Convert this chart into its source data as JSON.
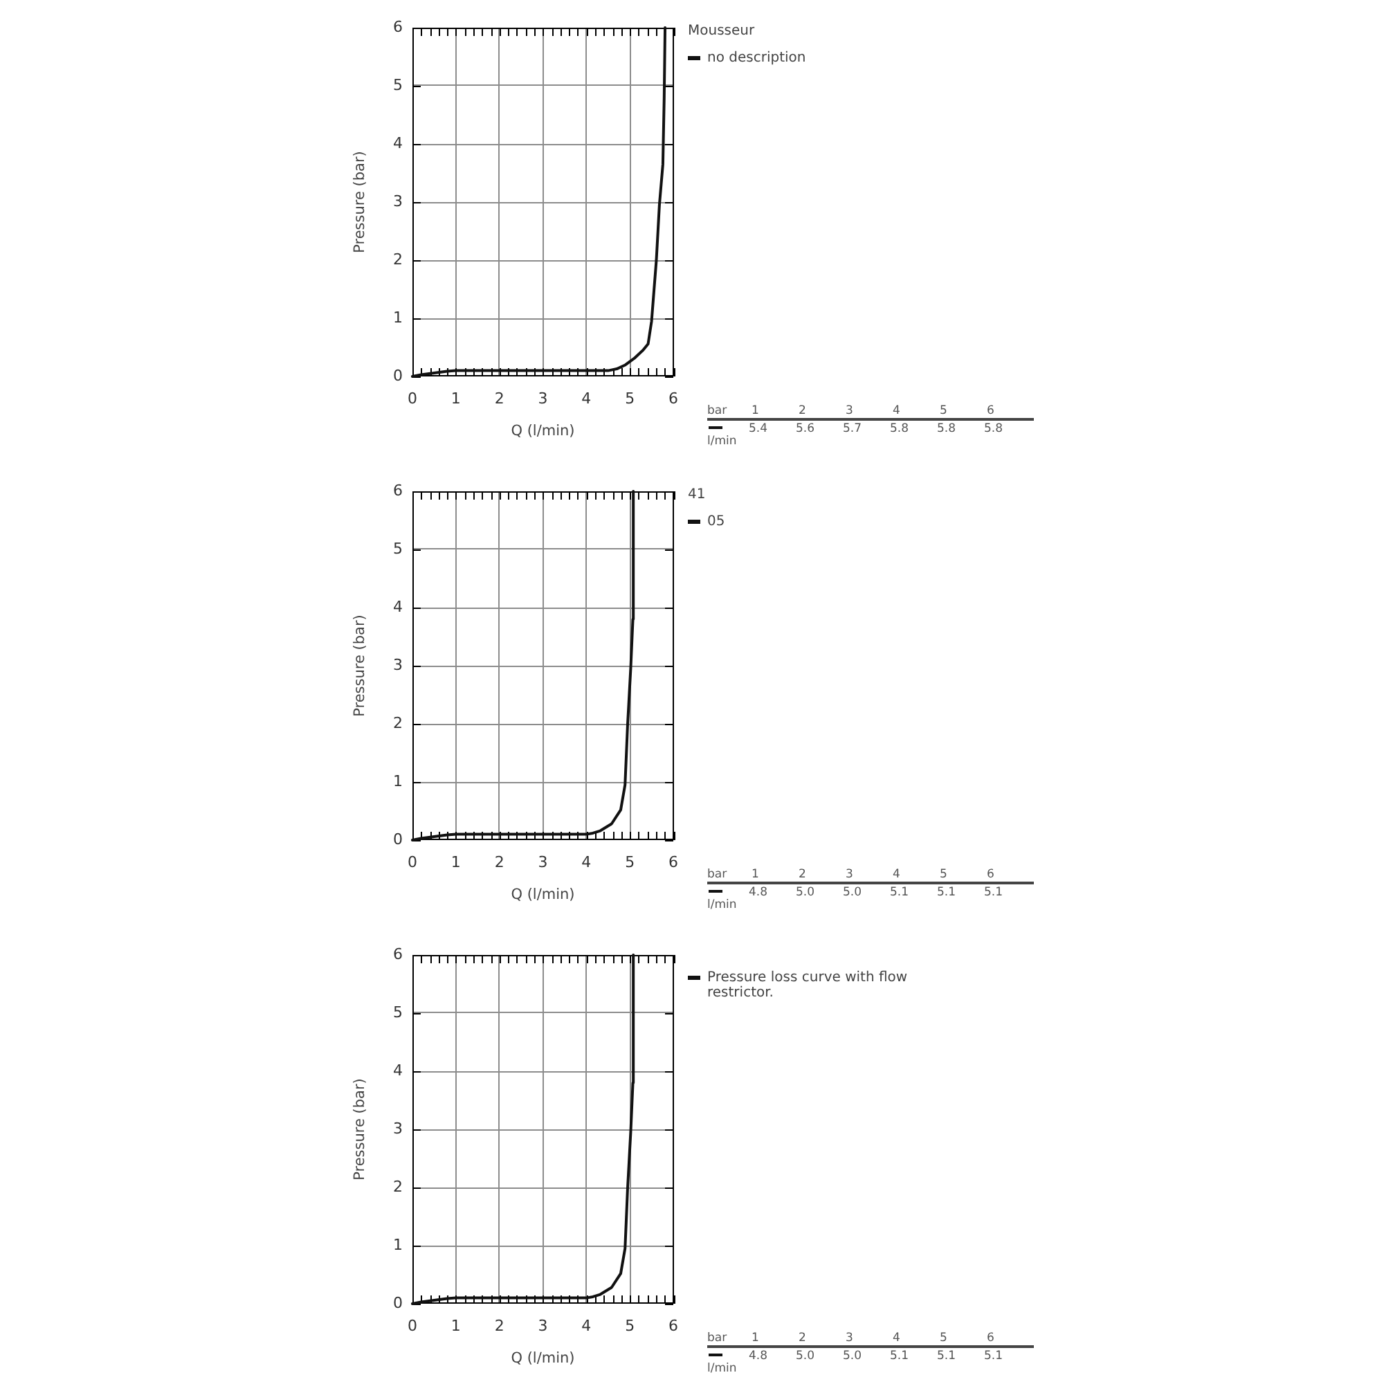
{
  "chart_data": [
    {
      "type": "line",
      "xlabel": "Q (l/min)",
      "ylabel": "Pressure (bar)",
      "legend_title": "Mousseur",
      "legend": "right",
      "grid": true,
      "x": [
        0,
        0.2,
        0.5,
        0.8,
        1,
        2,
        3,
        4,
        4.5,
        4.7,
        4.9,
        5.1,
        5.3,
        5.42,
        5.5,
        5.61,
        5.68,
        5.76,
        5.79,
        5.81
      ],
      "series": [
        {
          "name": "no description",
          "color": "#111111",
          "values": [
            0,
            0.03,
            0.06,
            0.09,
            0.1,
            0.1,
            0.1,
            0.1,
            0.1,
            0.13,
            0.2,
            0.31,
            0.45,
            0.56,
            0.95,
            2,
            2.95,
            3.65,
            4.8,
            6
          ]
        }
      ],
      "xlim": [
        0,
        6
      ],
      "xticks": [
        0,
        {
          "value": 0.2,
          "label": null
        },
        {
          "value": 0.4,
          "label": null
        },
        {
          "value": 0.6,
          "label": null
        },
        {
          "value": 0.8,
          "label": null
        },
        1,
        {
          "value": 1.2,
          "label": null
        },
        {
          "value": 1.4,
          "label": null
        },
        {
          "value": 1.6,
          "label": null
        },
        {
          "value": 1.8,
          "label": null
        },
        2,
        {
          "value": 2.2,
          "label": null
        },
        {
          "value": 2.4,
          "label": null
        },
        {
          "value": 2.6,
          "label": null
        },
        {
          "value": 2.8,
          "label": null
        },
        3,
        {
          "value": 3.2,
          "label": null
        },
        {
          "value": 3.4,
          "label": null
        },
        {
          "value": 3.6,
          "label": null
        },
        {
          "value": 3.8,
          "label": null
        },
        4,
        {
          "value": 4.2,
          "label": null
        },
        {
          "value": 4.4,
          "label": null
        },
        {
          "value": 4.6,
          "label": null
        },
        {
          "value": 4.8,
          "label": null
        },
        5,
        {
          "value": 5.2,
          "label": null
        },
        {
          "value": 5.4,
          "label": null
        },
        {
          "value": 5.6,
          "label": null
        },
        {
          "value": 5.8,
          "label": null
        },
        6
      ],
      "ylim": [
        0,
        6
      ],
      "yticks": [
        0,
        1,
        2,
        3,
        4,
        5,
        6
      ],
      "annotations": [
        "bar",
        "1",
        "2",
        "3",
        "4",
        "5",
        "6",
        "l/min",
        "5.4",
        "5.6",
        "5.7",
        "5.8",
        "5.8",
        "5.8"
      ]
    },
    {
      "type": "line",
      "xlabel": "Q (l/min)",
      "ylabel": "Pressure (bar)",
      "legend_title": "41",
      "legend": "right",
      "grid": true,
      "x": [
        0,
        0.2,
        0.5,
        0.8,
        1,
        2,
        3,
        4,
        4.15,
        4.32,
        4.58,
        4.79,
        4.89,
        4.95,
        5.02,
        5.07,
        5.08
      ],
      "series": [
        {
          "name": "05",
          "color": "#111111",
          "values": [
            0,
            0.03,
            0.06,
            0.09,
            0.1,
            0.1,
            0.1,
            0.1,
            0.12,
            0.16,
            0.28,
            0.52,
            0.95,
            2,
            2.95,
            3.8,
            6
          ]
        }
      ],
      "xlim": [
        0,
        6
      ],
      "xticks": [
        0,
        {
          "value": 0.2,
          "label": null
        },
        {
          "value": 0.4,
          "label": null
        },
        {
          "value": 0.6,
          "label": null
        },
        {
          "value": 0.8,
          "label": null
        },
        1,
        {
          "value": 1.2,
          "label": null
        },
        {
          "value": 1.4,
          "label": null
        },
        {
          "value": 1.6,
          "label": null
        },
        {
          "value": 1.8,
          "label": null
        },
        2,
        {
          "value": 2.2,
          "label": null
        },
        {
          "value": 2.4,
          "label": null
        },
        {
          "value": 2.6,
          "label": null
        },
        {
          "value": 2.8,
          "label": null
        },
        3,
        {
          "value": 3.2,
          "label": null
        },
        {
          "value": 3.4,
          "label": null
        },
        {
          "value": 3.6,
          "label": null
        },
        {
          "value": 3.8,
          "label": null
        },
        4,
        {
          "value": 4.2,
          "label": null
        },
        {
          "value": 4.4,
          "label": null
        },
        {
          "value": 4.6,
          "label": null
        },
        {
          "value": 4.8,
          "label": null
        },
        5,
        {
          "value": 5.2,
          "label": null
        },
        {
          "value": 5.4,
          "label": null
        },
        {
          "value": 5.6,
          "label": null
        },
        {
          "value": 5.8,
          "label": null
        },
        6
      ],
      "ylim": [
        0,
        6
      ],
      "yticks": [
        0,
        1,
        2,
        3,
        4,
        5,
        6
      ],
      "annotations": [
        "bar",
        "1",
        "2",
        "3",
        "4",
        "5",
        "6",
        "l/min",
        "4.8",
        "5.0",
        "5.0",
        "5.1",
        "5.1",
        "5.1"
      ]
    },
    {
      "type": "line",
      "xlabel": "Q (l/min)",
      "ylabel": "Pressure (bar)",
      "legend": "right",
      "grid": true,
      "x": [
        0,
        0.2,
        0.5,
        0.8,
        1,
        2,
        3,
        4,
        4.15,
        4.32,
        4.58,
        4.79,
        4.89,
        4.95,
        5.02,
        5.07,
        5.08
      ],
      "series": [
        {
          "name": "Pressure loss curve with flow restrictor.",
          "color": "#111111",
          "values": [
            0,
            0.03,
            0.06,
            0.09,
            0.1,
            0.1,
            0.1,
            0.1,
            0.12,
            0.16,
            0.28,
            0.52,
            0.95,
            2,
            2.95,
            3.8,
            6
          ]
        }
      ],
      "xlim": [
        0,
        6
      ],
      "xticks": [
        0,
        {
          "value": 0.2,
          "label": null
        },
        {
          "value": 0.4,
          "label": null
        },
        {
          "value": 0.6,
          "label": null
        },
        {
          "value": 0.8,
          "label": null
        },
        1,
        {
          "value": 1.2,
          "label": null
        },
        {
          "value": 1.4,
          "label": null
        },
        {
          "value": 1.6,
          "label": null
        },
        {
          "value": 1.8,
          "label": null
        },
        2,
        {
          "value": 2.2,
          "label": null
        },
        {
          "value": 2.4,
          "label": null
        },
        {
          "value": 2.6,
          "label": null
        },
        {
          "value": 2.8,
          "label": null
        },
        3,
        {
          "value": 3.2,
          "label": null
        },
        {
          "value": 3.4,
          "label": null
        },
        {
          "value": 3.6,
          "label": null
        },
        {
          "value": 3.8,
          "label": null
        },
        4,
        {
          "value": 4.2,
          "label": null
        },
        {
          "value": 4.4,
          "label": null
        },
        {
          "value": 4.6,
          "label": null
        },
        {
          "value": 4.8,
          "label": null
        },
        5,
        {
          "value": 5.2,
          "label": null
        },
        {
          "value": 5.4,
          "label": null
        },
        {
          "value": 5.6,
          "label": null
        },
        {
          "value": 5.8,
          "label": null
        },
        6
      ],
      "ylim": [
        0,
        6
      ],
      "yticks": [
        0,
        1,
        2,
        3,
        4,
        5,
        6
      ],
      "annotations": [
        "bar",
        "1",
        "2",
        "3",
        "4",
        "5",
        "6",
        "l/min",
        "4.8",
        "5.0",
        "5.0",
        "5.1",
        "5.1",
        "5.1"
      ]
    }
  ]
}
